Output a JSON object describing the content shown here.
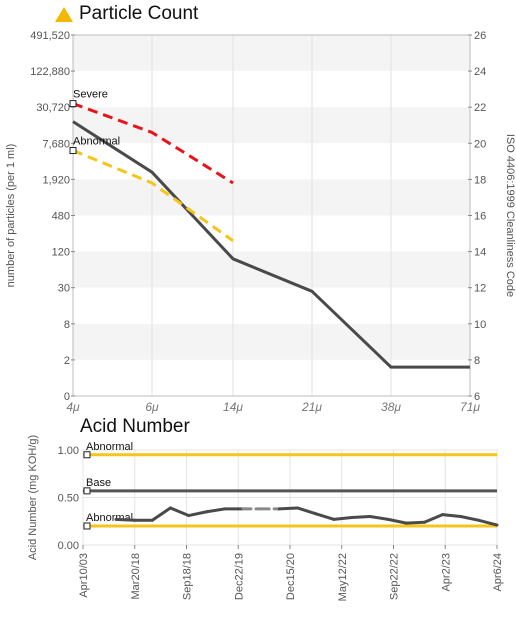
{
  "particle": {
    "title": "Particle Count",
    "chart_data": {
      "type": "line",
      "title": "Particle Count",
      "xlabel": "",
      "ylabel": "number of particles (per 1 ml)",
      "y2label": "ISO 4406:1999 Cleanliness Code",
      "x_ticks": [
        "4",
        "6",
        "14",
        "21",
        "38",
        "71"
      ],
      "x_unit": "μ",
      "y_ticks": [
        "491,520",
        "122,880",
        "30,720",
        "7,680",
        "1,920",
        "480",
        "120",
        "30",
        "8",
        "2",
        "0"
      ],
      "y2_ticks": [
        "26",
        "24",
        "22",
        "20",
        "18",
        "16",
        "14",
        "12",
        "10",
        "8",
        "6"
      ],
      "y2lim": [
        6,
        26
      ],
      "series": [
        {
          "color": "#4a4a4a",
          "style": "solid",
          "x": [
            "4",
            "6",
            "14",
            "21",
            "38",
            "71"
          ],
          "y2": [
            21.2,
            18.4,
            13.6,
            11.8,
            7.6,
            7.6
          ]
        },
        {
          "name": "Severe",
          "color": "#e8141b",
          "style": "dashed",
          "x": [
            "4",
            "6",
            "14"
          ],
          "y2": [
            22.2,
            20.6,
            17.8
          ]
        },
        {
          "name": "Abnormal",
          "color": "#f5c51a",
          "style": "dashed",
          "x": [
            "4",
            "6",
            "14"
          ],
          "y2": [
            19.6,
            17.8,
            14.6
          ]
        }
      ]
    }
  },
  "acid": {
    "title": "Acid Number",
    "chart_data": {
      "type": "line",
      "title": "Acid Number",
      "xlabel": "",
      "ylabel": "Acid Number (mg KOH/g)",
      "ylim": [
        0,
        1
      ],
      "y_ticks": [
        "1.00",
        "0.50",
        "0.00"
      ],
      "x_ticks": [
        "Apr10/03",
        "Mar20/18",
        "Sep18/18",
        "Dec22/19",
        "Dec15/20",
        "May12/22",
        "Sep22/22",
        "Apr2/23",
        "Apr6/24"
      ],
      "limits": [
        {
          "name": "Abnormal",
          "value": 0.95,
          "color": "#f5c51a"
        },
        {
          "name": "Base",
          "value": 0.57,
          "color": "#555555"
        },
        {
          "name": "Abnormal",
          "value": 0.2,
          "color": "#f5c51a"
        }
      ],
      "series": [
        {
          "color": "#4a4a4a",
          "y": [
            0.27,
            0.26,
            0.26,
            0.39,
            0.31,
            0.35,
            0.38,
            0.38,
            0.38,
            0.38,
            0.39,
            0.33,
            0.27,
            0.29,
            0.3,
            0.27,
            0.23,
            0.24,
            0.32,
            0.3,
            0.26,
            0.21
          ],
          "dashed_segments": [
            [
              7,
              9
            ]
          ]
        }
      ]
    }
  }
}
